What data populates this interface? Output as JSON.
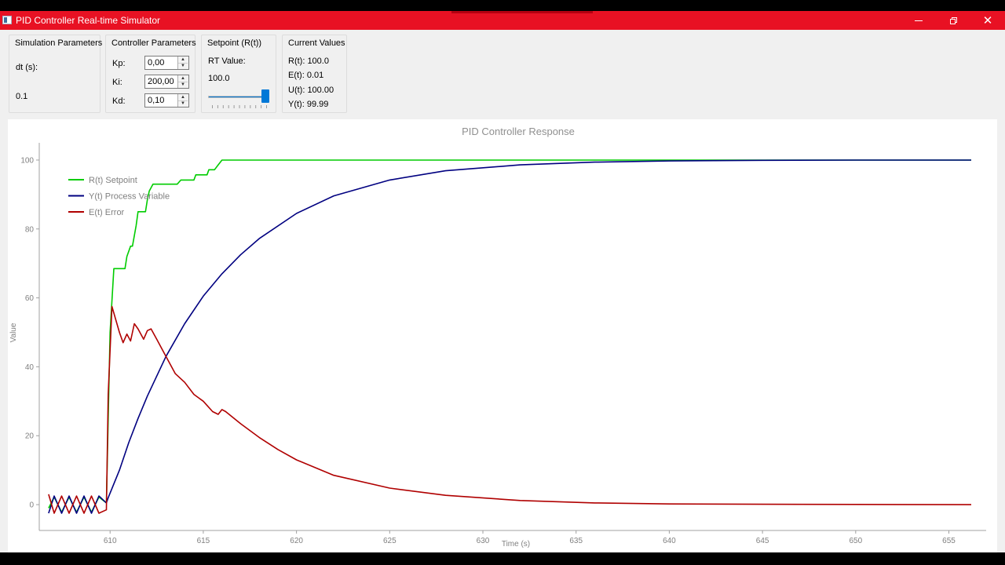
{
  "window": {
    "title": "PID Controller Real-time Simulator"
  },
  "simulation": {
    "title": "Simulation Parameters",
    "dt_label": "dt (s):",
    "dt_value": "0.1"
  },
  "controller": {
    "title": "Controller Parameters",
    "kp_label": "Kp:",
    "kp_value": "0,00",
    "ki_label": "Ki:",
    "ki_value": "200,00",
    "kd_label": "Kd:",
    "kd_value": "0,10"
  },
  "setpoint": {
    "title": "Setpoint (R(t))",
    "rt_label": "RT Value:",
    "rt_value": "100.0",
    "slider_fraction": 1.0
  },
  "current": {
    "title": "Current Values",
    "r_text": "R(t): 100.0",
    "e_text": "E(t): 0.01",
    "u_text": "U(t): 100.00",
    "y_text": "Y(t): 99.99"
  },
  "chart_data": {
    "type": "line",
    "title": "PID Controller Response",
    "xlabel": "Time (s)",
    "ylabel": "Value",
    "xlim": [
      606.2,
      657.0
    ],
    "ylim": [
      -7.5,
      105
    ],
    "xticks": [
      "610",
      "615",
      "620",
      "625",
      "630",
      "635",
      "640",
      "645",
      "650",
      "655"
    ],
    "yticks": [
      "0",
      "20",
      "40",
      "60",
      "80",
      "100"
    ],
    "grid": false,
    "legend_position": "top-left",
    "series": [
      {
        "name": "R(t) Setpoint",
        "color": "#00cc00",
        "points": [
          [
            606.7,
            -1
          ],
          [
            607.0,
            2.2
          ],
          [
            607.4,
            -2.2
          ],
          [
            607.8,
            2.2
          ],
          [
            608.2,
            -2.2
          ],
          [
            608.6,
            2.2
          ],
          [
            609.0,
            -2.2
          ],
          [
            609.4,
            2.2
          ],
          [
            609.8,
            0.5
          ],
          [
            610.0,
            50
          ],
          [
            610.2,
            68.5
          ],
          [
            610.8,
            68.5
          ],
          [
            610.9,
            72
          ],
          [
            611.1,
            75
          ],
          [
            611.2,
            75
          ],
          [
            611.4,
            81
          ],
          [
            611.5,
            85
          ],
          [
            611.9,
            85
          ],
          [
            612.0,
            88.5
          ],
          [
            612.1,
            91
          ],
          [
            612.3,
            93
          ],
          [
            613.6,
            93
          ],
          [
            613.8,
            94.2
          ],
          [
            614.5,
            94.2
          ],
          [
            614.6,
            95.7
          ],
          [
            615.2,
            95.7
          ],
          [
            615.3,
            97.2
          ],
          [
            615.6,
            97.2
          ],
          [
            615.8,
            98.6
          ],
          [
            616.0,
            100
          ],
          [
            656.2,
            100
          ]
        ]
      },
      {
        "name": "Y(t) Process Variable",
        "color": "#000080",
        "points": [
          [
            606.7,
            -2.5
          ],
          [
            607.0,
            2.5
          ],
          [
            607.4,
            -2.5
          ],
          [
            607.8,
            2.5
          ],
          [
            608.2,
            -2.5
          ],
          [
            608.6,
            2.5
          ],
          [
            609.0,
            -2.5
          ],
          [
            609.4,
            2.5
          ],
          [
            609.8,
            0.5
          ],
          [
            609.9,
            2
          ],
          [
            610.5,
            10
          ],
          [
            611.0,
            18
          ],
          [
            611.5,
            25
          ],
          [
            612.0,
            31.5
          ],
          [
            613.0,
            43
          ],
          [
            614.0,
            52.5
          ],
          [
            615.0,
            60.5
          ],
          [
            616.0,
            67
          ],
          [
            617.0,
            72.5
          ],
          [
            618.0,
            77.2
          ],
          [
            620.0,
            84.5
          ],
          [
            622.0,
            89.6
          ],
          [
            625.0,
            94.2
          ],
          [
            628.0,
            96.9
          ],
          [
            632.0,
            98.6
          ],
          [
            636.0,
            99.4
          ],
          [
            640.0,
            99.75
          ],
          [
            645.0,
            99.92
          ],
          [
            650.0,
            99.98
          ],
          [
            656.2,
            100
          ]
        ]
      },
      {
        "name": "E(t) Error",
        "color": "#b00000",
        "points": [
          [
            606.7,
            3
          ],
          [
            607.0,
            -2.5
          ],
          [
            607.4,
            2.5
          ],
          [
            607.8,
            -2.5
          ],
          [
            608.2,
            2.5
          ],
          [
            608.6,
            -2.5
          ],
          [
            609.0,
            2.5
          ],
          [
            609.4,
            -2.5
          ],
          [
            609.8,
            -1.5
          ],
          [
            609.9,
            32
          ],
          [
            610.1,
            57.5
          ],
          [
            610.5,
            50
          ],
          [
            610.7,
            47
          ],
          [
            610.9,
            49.5
          ],
          [
            611.1,
            47.5
          ],
          [
            611.3,
            52.5
          ],
          [
            611.5,
            51
          ],
          [
            611.8,
            48
          ],
          [
            612.0,
            50.5
          ],
          [
            612.2,
            51
          ],
          [
            612.5,
            48
          ],
          [
            613.0,
            43
          ],
          [
            613.5,
            38
          ],
          [
            614.0,
            35.5
          ],
          [
            614.5,
            32
          ],
          [
            615.0,
            30
          ],
          [
            615.5,
            27
          ],
          [
            615.8,
            26.2
          ],
          [
            616.0,
            27.6
          ],
          [
            616.2,
            27
          ],
          [
            617.0,
            23.5
          ],
          [
            618.0,
            19.5
          ],
          [
            619.0,
            16
          ],
          [
            620.0,
            13
          ],
          [
            622.0,
            8.5
          ],
          [
            625.0,
            4.8
          ],
          [
            628.0,
            2.7
          ],
          [
            632.0,
            1.2
          ],
          [
            636.0,
            0.5
          ],
          [
            640.0,
            0.2
          ],
          [
            645.0,
            0.1
          ],
          [
            650.0,
            0.05
          ],
          [
            656.2,
            0
          ]
        ]
      }
    ]
  }
}
